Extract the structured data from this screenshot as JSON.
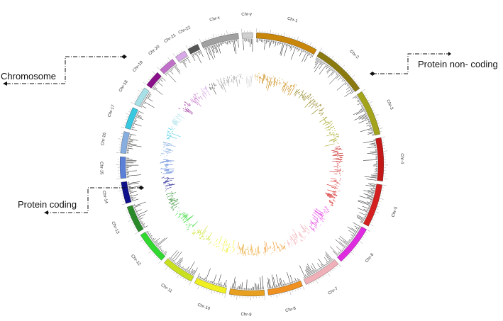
{
  "chromosomes": [
    {
      "label": "Chr-1",
      "color": "#c8860a"
    },
    {
      "label": "Chr-2",
      "color": "#8a7a10"
    },
    {
      "label": "Chr-3",
      "color": "#a3a31c"
    },
    {
      "label": "Chr-4",
      "color": "#c41818"
    },
    {
      "label": "Chr-5",
      "color": "#d42020"
    },
    {
      "label": "Chr-6",
      "color": "#e02ce0"
    },
    {
      "label": "Chr-7",
      "color": "#f0b0b8"
    },
    {
      "label": "Chr-8",
      "color": "#f09020"
    },
    {
      "label": "Chr-9",
      "color": "#e8a020"
    },
    {
      "label": "Chr-10",
      "color": "#f0f020"
    },
    {
      "label": "Chr-11",
      "color": "#c8e020"
    },
    {
      "label": "Chr-12",
      "color": "#30d830"
    },
    {
      "label": "Chr-13",
      "color": "#2a8a2a"
    },
    {
      "label": "Chr-14",
      "color": "#10108a"
    },
    {
      "label": "Chr-15",
      "color": "#5a80d8"
    },
    {
      "label": "Chr-16",
      "color": "#88aee0"
    },
    {
      "label": "Chr-17",
      "color": "#38c8e0"
    },
    {
      "label": "Chr-18",
      "color": "#a8e0e8"
    },
    {
      "label": "Chr-19",
      "color": "#8a108a"
    },
    {
      "label": "Chr-20",
      "color": "#c070c8"
    },
    {
      "label": "Chr-21",
      "color": "#d8a8e8"
    },
    {
      "label": "Chr-22",
      "color": "#555555"
    },
    {
      "label": "Chr-x",
      "color": "#a0a0a0"
    },
    {
      "label": "Chr-y",
      "color": "#d0d0d0"
    }
  ],
  "callouts": {
    "chromosome": "Chromosome",
    "protein_non_coding": "Protein non- coding",
    "protein_coding": "Protein coding"
  }
}
